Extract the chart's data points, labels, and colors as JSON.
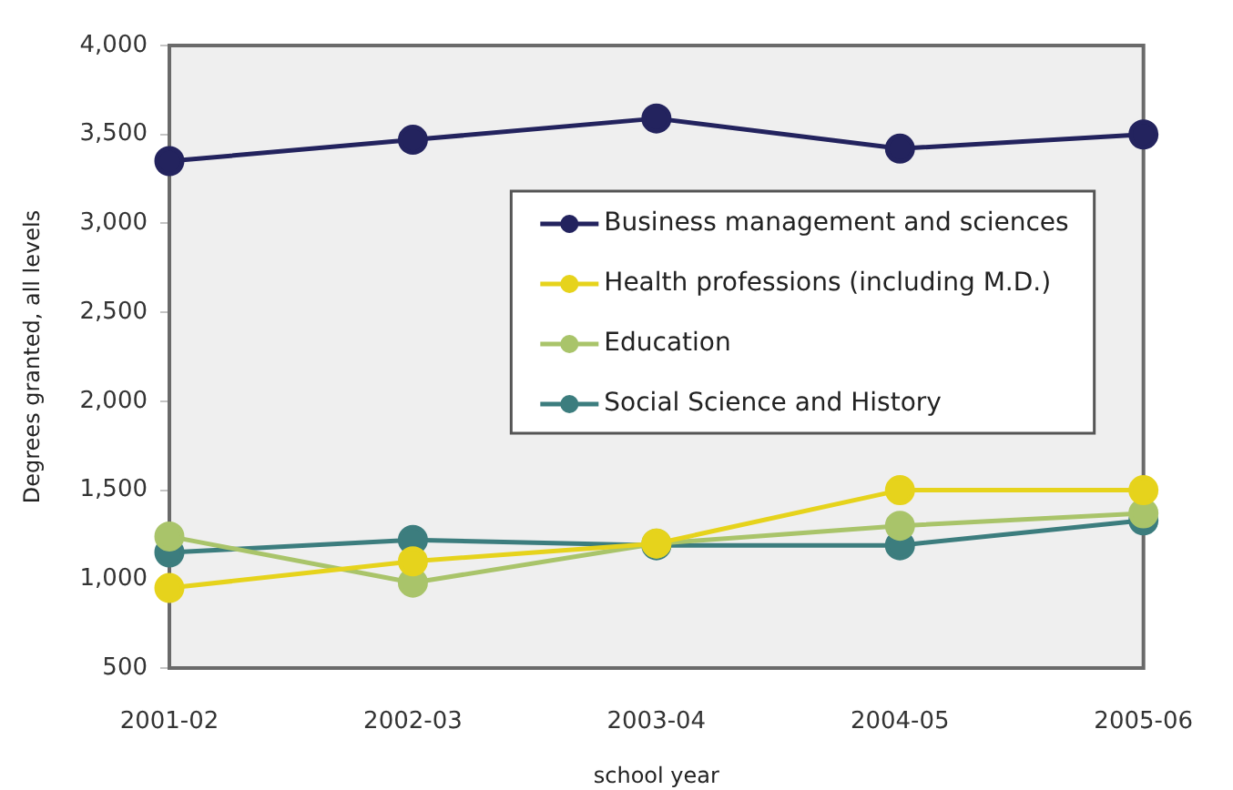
{
  "chart_data": {
    "type": "line",
    "xlabel": "school year",
    "ylabel": "Degrees granted, all levels",
    "categories": [
      "2001-02",
      "2002-03",
      "2003-04",
      "2004-05",
      "2005-06"
    ],
    "series": [
      {
        "name": "Business management and sciences",
        "color": "#23235e",
        "values": [
          3350,
          3470,
          3590,
          3420,
          3500
        ]
      },
      {
        "name": "Health professions (including M.D.)",
        "color": "#e6d31c",
        "values": [
          950,
          1100,
          1200,
          1500,
          1500
        ]
      },
      {
        "name": "Education",
        "color": "#a9c46a",
        "values": [
          1240,
          980,
          1200,
          1300,
          1370
        ]
      },
      {
        "name": "Social Science and History",
        "color": "#3c7d7e",
        "values": [
          1150,
          1220,
          1190,
          1190,
          1330
        ]
      }
    ],
    "ylim": [
      500,
      4000
    ],
    "yticks": [
      500,
      {
        "value": 1000,
        "label": "1,000"
      },
      {
        "value": 1500,
        "label": "1,500"
      },
      {
        "value": 2000,
        "label": "2,000"
      },
      {
        "value": 2500,
        "label": "2,500"
      },
      {
        "value": 3000,
        "label": "3,000"
      },
      {
        "value": 3500,
        "label": "3,500"
      },
      {
        "value": 4000,
        "label": "4,000"
      }
    ],
    "legend": "top right",
    "marker": "circle",
    "line_style": "solid"
  }
}
